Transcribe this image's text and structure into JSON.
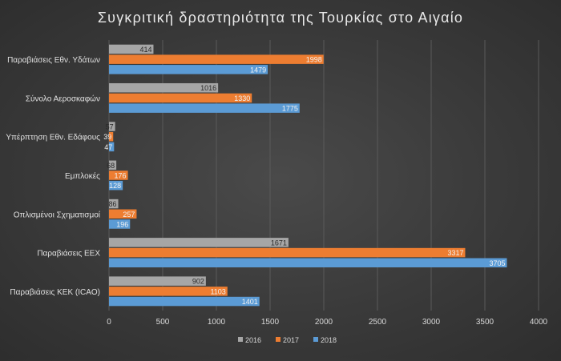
{
  "chart_data": {
    "type": "bar",
    "orientation": "horizontal",
    "title": "Συγκριτική δραστηριότητα της Τουρκίας στο Αιγαίο",
    "categories": [
      "Παραβιάσεις Εθν. Υδάτων",
      "Σύνολο Αεροσκαφών",
      "Υπέρπτηση Εθν. Εδάφους",
      "Εμπλοκές",
      "Οπλισμένοι Σχηματισμοί",
      "Παραβιάσεις ΕΕΧ",
      "Παραβιάσεις ΚΕΚ (ICAO)"
    ],
    "series": [
      {
        "name": "2016",
        "color": "#a6a6a6",
        "values": [
          414,
          1016,
          57,
          68,
          86,
          1671,
          902
        ]
      },
      {
        "name": "2017",
        "color": "#ed7d31",
        "values": [
          1998,
          1330,
          39,
          176,
          257,
          3317,
          1103
        ]
      },
      {
        "name": "2018",
        "color": "#5b9bd5",
        "values": [
          1479,
          1775,
          47,
          128,
          196,
          3705,
          1401
        ]
      }
    ],
    "xlim": [
      0,
      4000
    ],
    "xticks": [
      "0",
      "500",
      "1000",
      "1500",
      "2000",
      "2500",
      "3000",
      "3500",
      "4000"
    ],
    "grid": true,
    "legend_position": "bottom",
    "data_labels": true
  }
}
